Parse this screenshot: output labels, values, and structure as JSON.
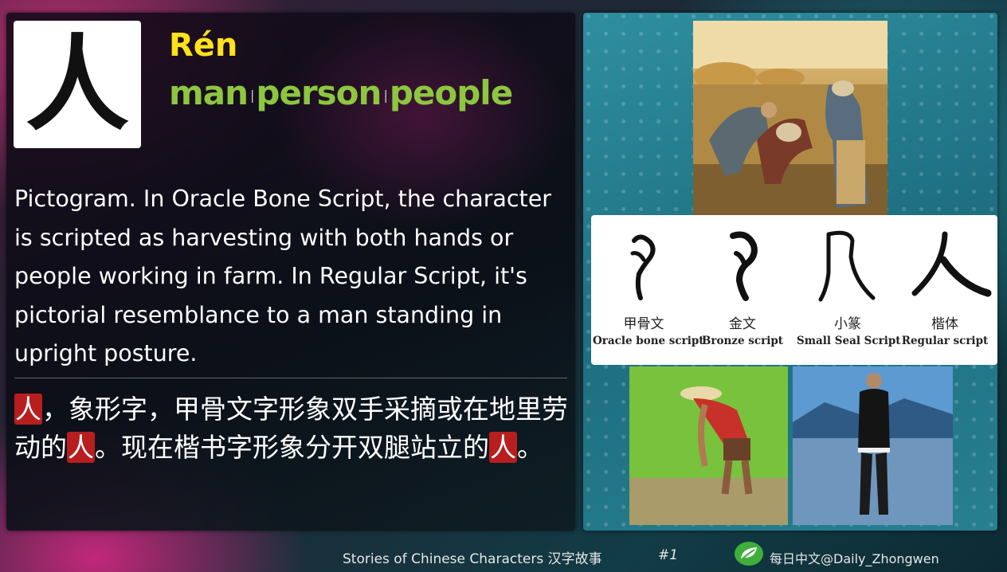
{
  "card": {
    "glyph": "人",
    "pinyin": "Rén",
    "meanings": [
      "man",
      "person",
      "people"
    ],
    "meaning_separator": "|",
    "english_text": "Pictogram. In Oracle Bone Script, the character is scripted as harvesting with both hands or people working in farm. In Regular Script, it's pictorial resemblance to a man standing in upright posture.",
    "chinese": {
      "part1": "人",
      "part2": "，象形字，甲骨文字形象双手采摘或在地里劳动的",
      "part3": "人",
      "part4": "。现在楷书字形象分开双腿站立的",
      "part5": "人",
      "part6": "。"
    },
    "highlight_color": "#b81e1e",
    "pinyin_color": "#ffe21a",
    "meaning_color": "#8dc63f"
  },
  "scripts": [
    {
      "cn": "甲骨文",
      "en": "Oracle bone script"
    },
    {
      "cn": "金文",
      "en": "Bronze script"
    },
    {
      "cn": "小篆",
      "en": "Small Seal Script"
    },
    {
      "cn": "楷体",
      "en": "Regular script"
    }
  ],
  "images": {
    "top": "gleaners-painting",
    "bottom_left": "farmer-planting-rice",
    "bottom_right": "man-standing-by-lake"
  },
  "footer": {
    "series": "Stories of Chinese Characters 汉字故事",
    "number": "#1",
    "account": "每日中文@Daily_Zhongwen",
    "icon": "wechat-icon"
  }
}
